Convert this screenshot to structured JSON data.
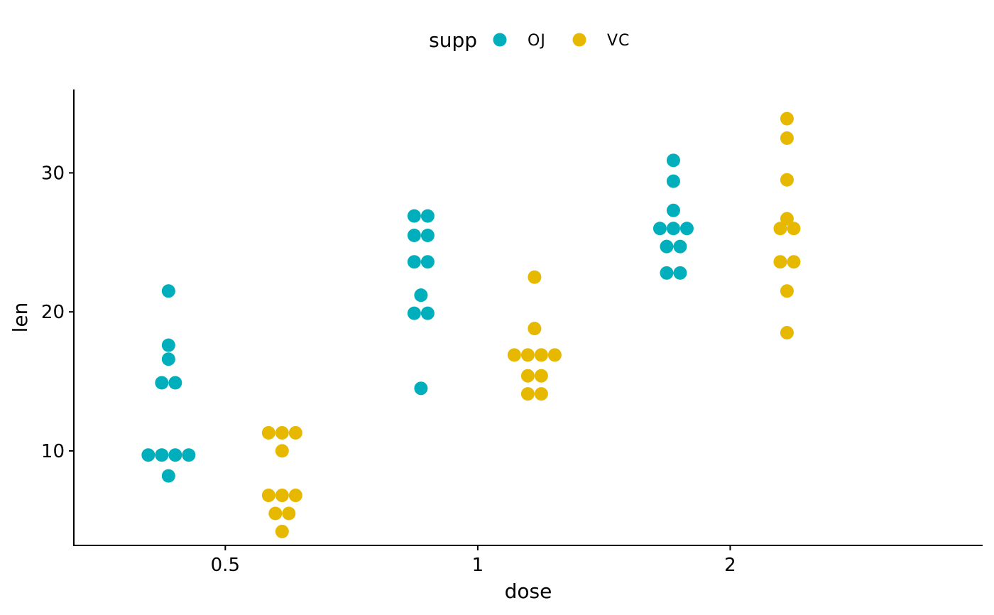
{
  "chart_data": {
    "type": "dotplot",
    "xlabel": "dose",
    "ylabel": "len",
    "categories": [
      "0.5",
      "1",
      "2"
    ],
    "yticks": [
      10,
      20,
      30
    ],
    "ylim": [
      3.2,
      36.0
    ],
    "grid": false,
    "legend": {
      "title": "supp",
      "position": "top",
      "items": [
        {
          "label": "OJ",
          "color": "#00AFBB"
        },
        {
          "label": "VC",
          "color": "#E7B800"
        }
      ]
    },
    "series": [
      {
        "name": "OJ",
        "color": "#00AFBB",
        "groups": [
          {
            "category": "0.5",
            "values": [
              8.2,
              9.7,
              9.7,
              9.7,
              9.7,
              14.9,
              14.9,
              16.6,
              17.6,
              21.5
            ]
          },
          {
            "category": "1",
            "values": [
              14.5,
              19.9,
              19.9,
              21.2,
              23.6,
              23.6,
              25.5,
              25.5,
              26.9,
              26.9
            ]
          },
          {
            "category": "2",
            "values": [
              22.8,
              22.8,
              24.7,
              24.7,
              26.0,
              26.0,
              26.0,
              27.3,
              29.4,
              30.9
            ]
          }
        ]
      },
      {
        "name": "VC",
        "color": "#E7B800",
        "groups": [
          {
            "category": "0.5",
            "values": [
              4.2,
              5.5,
              5.5,
              6.8,
              6.8,
              6.8,
              10.0,
              11.3,
              11.3,
              11.3
            ]
          },
          {
            "category": "1",
            "values": [
              14.1,
              14.1,
              15.4,
              15.4,
              16.9,
              16.9,
              16.9,
              16.9,
              18.8,
              22.5
            ]
          },
          {
            "category": "2",
            "values": [
              18.5,
              21.5,
              23.6,
              23.6,
              26.0,
              26.0,
              26.7,
              29.5,
              32.5,
              33.9
            ]
          }
        ]
      }
    ]
  }
}
